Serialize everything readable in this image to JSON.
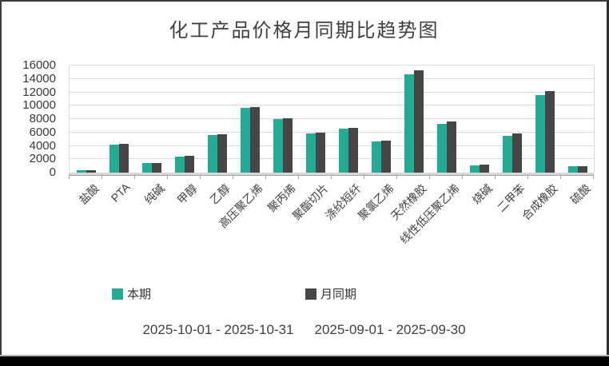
{
  "chart_data": {
    "type": "bar",
    "title": "化工产品价格月同期比趋势图",
    "categories": [
      "盐酸",
      "PTA",
      "纯碱",
      "甲醇",
      "乙醇",
      "高压聚乙烯",
      "聚丙烯",
      "聚酯切片",
      "涤纶短纤",
      "聚氯乙烯",
      "天然橡胶",
      "线性低压聚乙烯",
      "烧碱",
      "二甲苯",
      "合成橡胶",
      "硫酸"
    ],
    "series": [
      {
        "name": "本期",
        "color": "#22ac96",
        "values": [
          300,
          4200,
          1400,
          2350,
          5600,
          9700,
          8000,
          5800,
          6550,
          4650,
          14700,
          7300,
          1050,
          5550,
          11600,
          950
        ]
      },
      {
        "name": "月同期",
        "color": "#464646",
        "values": [
          300,
          4300,
          1450,
          2450,
          5700,
          9850,
          8150,
          6000,
          6700,
          4800,
          15300,
          7600,
          1200,
          5850,
          12150,
          1000
        ]
      }
    ],
    "ylim": [
      0,
      16000
    ],
    "yticks": [
      0,
      2000,
      4000,
      6000,
      8000,
      10000,
      12000,
      14000,
      16000
    ],
    "grid": true,
    "gridline_color": "#d9d9d9",
    "legend_position": "bottom",
    "xlabel": "",
    "ylabel": ""
  },
  "footer": {
    "period_current": "2025-10-01 - 2025-10-31",
    "period_previous": "2025-09-01 - 2025-09-30"
  }
}
